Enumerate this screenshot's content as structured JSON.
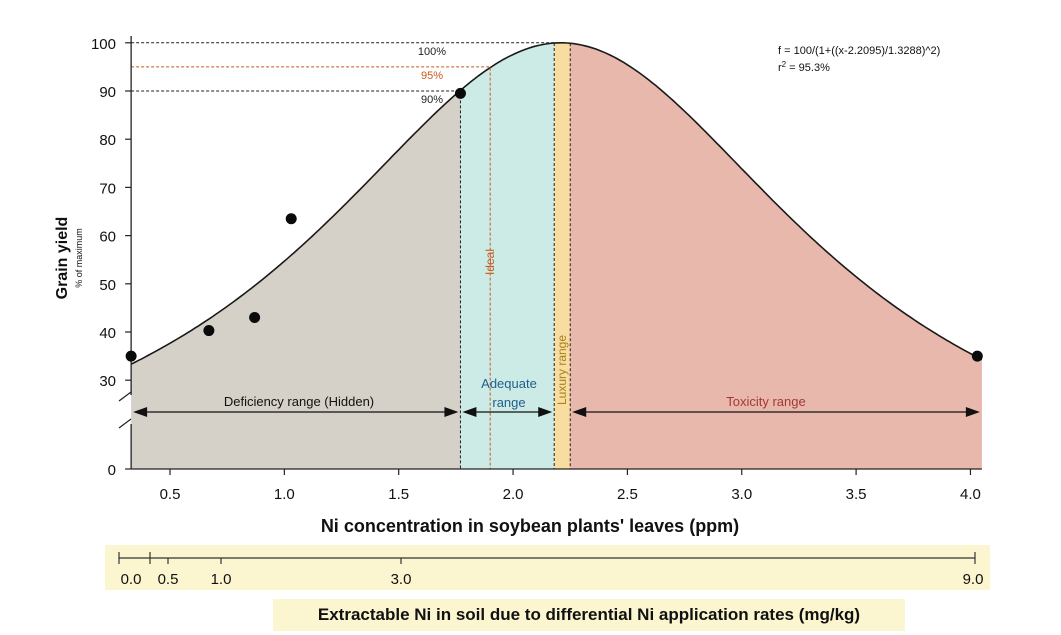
{
  "chart_data": {
    "type": "scatter",
    "title": "",
    "xlabel": "Ni concentration in soybean plants' leaves (ppm)",
    "ylabel": "Grain yield",
    "ylabel_sub": "% of maximum",
    "xlim": [
      0.33,
      4.05
    ],
    "y_ticks": [
      0,
      30,
      40,
      50,
      60,
      70,
      80,
      90,
      100
    ],
    "y_axis_break": "between 0 and 30",
    "x_ticks": [
      "0.5",
      "1.0",
      "1.5",
      "2.0",
      "2.5",
      "3.0",
      "3.5",
      "4.0"
    ],
    "x_tick_values": [
      0.5,
      1.0,
      1.5,
      2.0,
      2.5,
      3.0,
      3.5,
      4.0
    ],
    "equation": "f = 100/(1+((x-2.2095)/1.3288)^2)",
    "r2_label": "r",
    "r2_value": " = 95.3%",
    "fit": {
      "center": 2.2095,
      "width": 1.3288,
      "max": 100
    },
    "points": [
      {
        "x": 0.33,
        "y": 35
      },
      {
        "x": 0.67,
        "y": 40.3
      },
      {
        "x": 0.87,
        "y": 43
      },
      {
        "x": 1.03,
        "y": 63.5
      },
      {
        "x": 1.77,
        "y": 89.5
      },
      {
        "x": 4.03,
        "y": 35
      }
    ],
    "reference_lines": [
      {
        "label": "100%",
        "y": 100,
        "x_end": 2.18,
        "color": "#222222"
      },
      {
        "label": "95%",
        "y": 95,
        "x_end": 1.9,
        "color": "#c85a1e"
      },
      {
        "label": "90%",
        "y": 90,
        "x_end": 1.77,
        "color": "#222222"
      }
    ],
    "ranges": [
      {
        "label": "Deficiency range (Hidden)",
        "x0": 0.33,
        "x1": 1.77,
        "color": "#d6d1c8"
      },
      {
        "label": "Adequate range",
        "x0": 1.77,
        "x1": 2.18,
        "color": "#cceae6"
      },
      {
        "label": "Luxury range",
        "x0": 2.18,
        "x1": 2.25,
        "color": "#f8dca0"
      },
      {
        "label": "Toxicity range",
        "x0": 2.25,
        "x1": 4.05,
        "color": "#e8b8ac"
      }
    ],
    "range_text": {
      "deficiency": "Deficiency range (Hidden)",
      "adequate_1": "Adequate",
      "adequate_2": "range",
      "luxury": "Luxury range",
      "ideal": "Ideal",
      "toxicity": "Toxicity range"
    },
    "ideal_line_x": 1.9,
    "secondary_axis": {
      "title": "Extractable Ni in soil due to differential Ni application rates (mg/kg)",
      "ticks": [
        "0.0",
        "0.5",
        "1.0",
        "3.0",
        "9.0"
      ]
    },
    "colors": {
      "deficiency": "#d6d1c8",
      "adequate": "#cceae6",
      "luxury": "#f8dca0",
      "toxicity": "#e8b8ac",
      "ideal_line": "#c85a1e",
      "adequate_text": "#1f5f8b",
      "toxicity_text": "#a33a32",
      "luxury_text": "#a8821a",
      "soil_band": "#fbf6cf"
    },
    "grid": false
  }
}
